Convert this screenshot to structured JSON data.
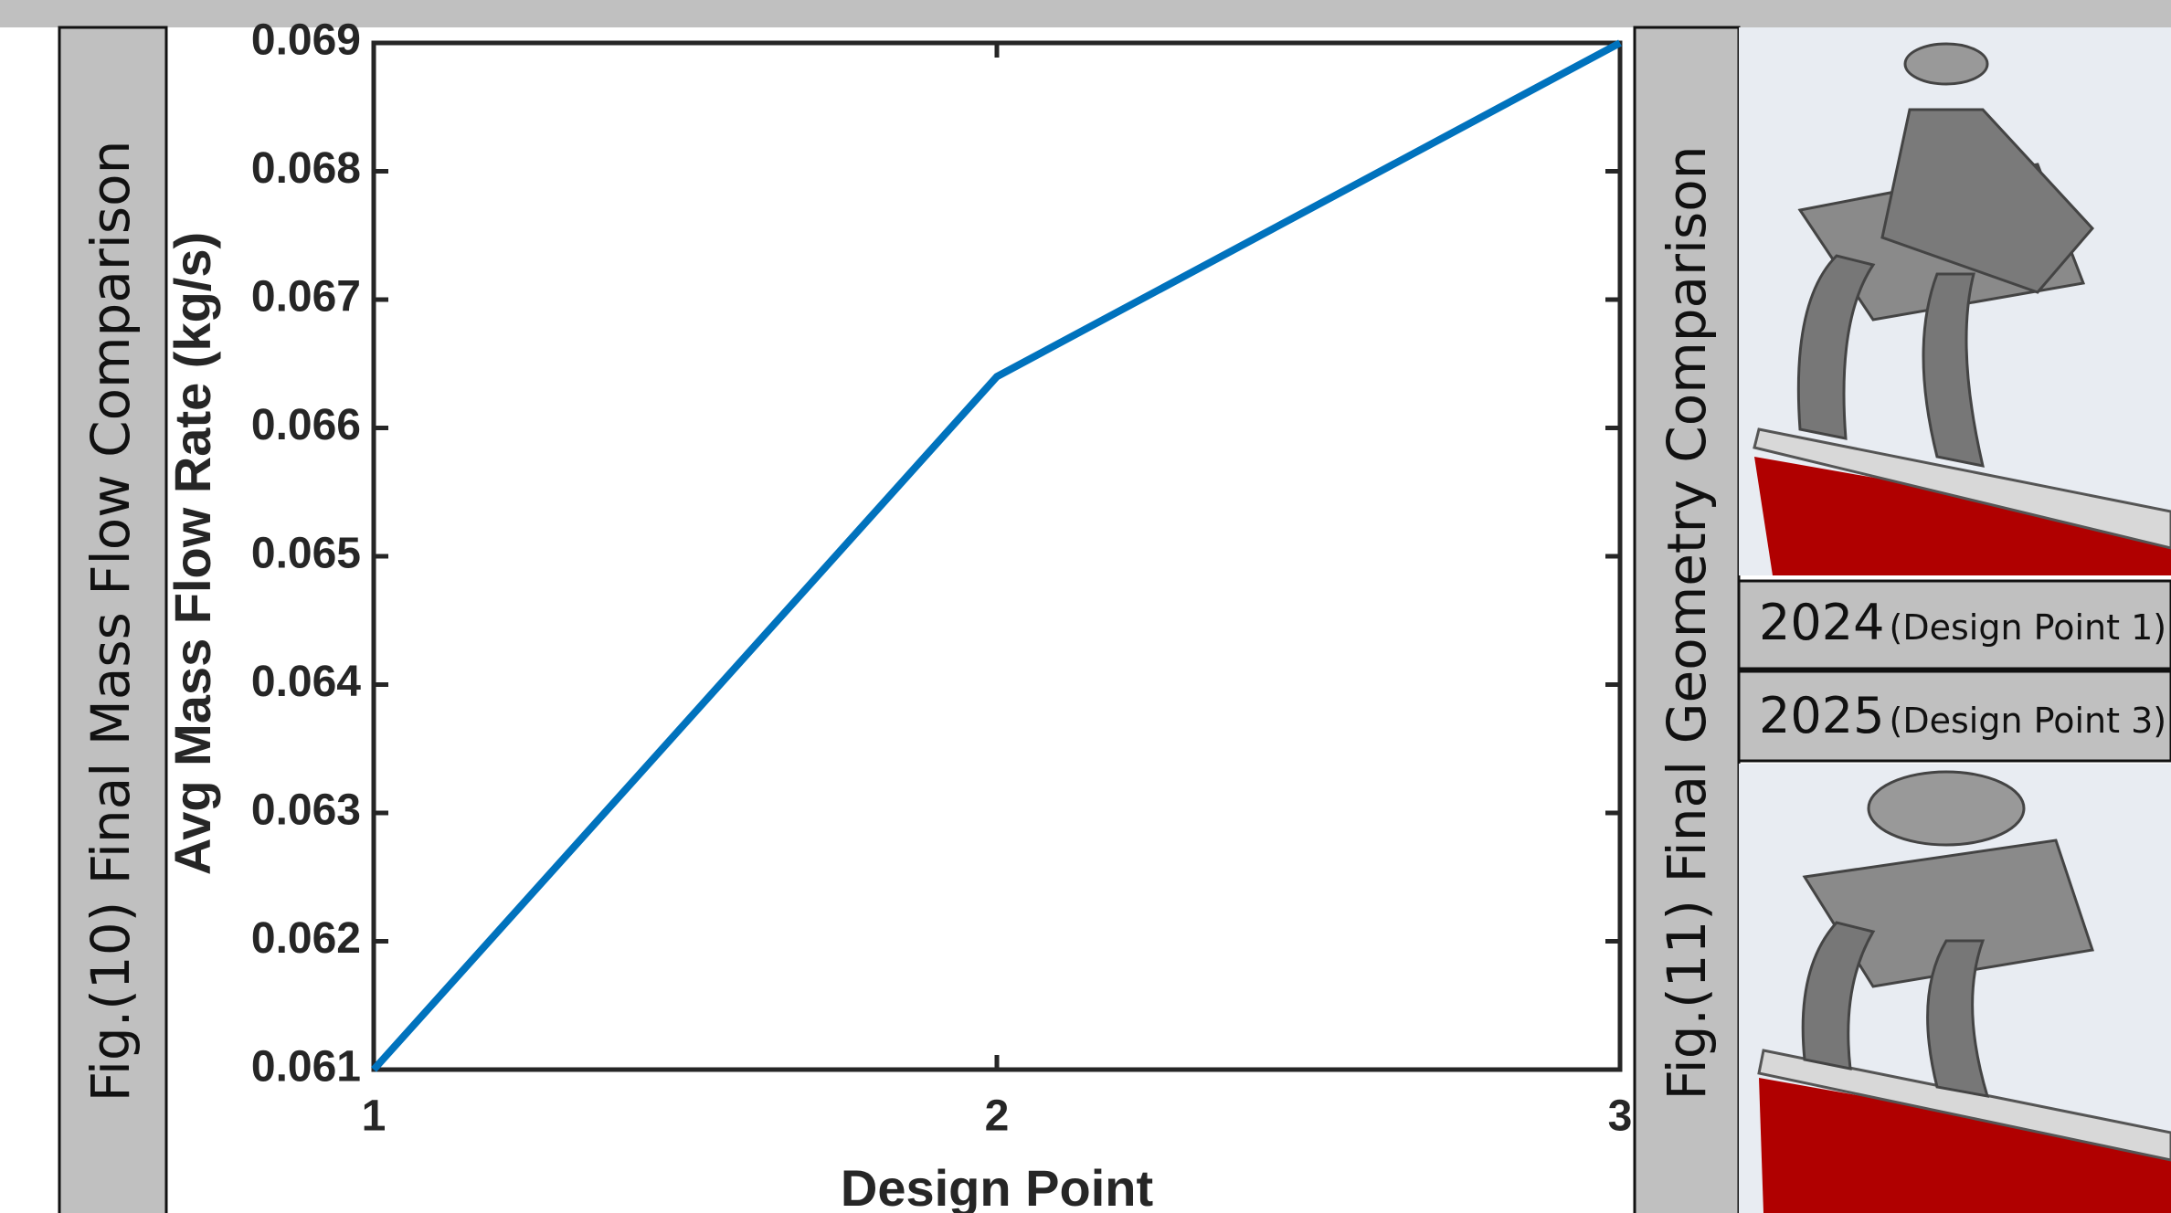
{
  "chart_data": {
    "type": "line",
    "x_label": "Design Point",
    "y_label": "Avg Mass Flow Rate (kg/s)",
    "x": [
      1,
      2,
      3
    ],
    "values": [
      0.061,
      0.0664,
      0.069
    ],
    "color": "#0072bd",
    "xlim": [
      1,
      3
    ],
    "ylim": [
      0.061,
      0.069
    ],
    "xticks": [
      1,
      2,
      3
    ],
    "yticks": [
      0.061,
      0.062,
      0.063,
      0.064,
      0.065,
      0.066,
      0.067,
      0.068,
      0.069
    ]
  },
  "figure_10_caption": "Fig.(10) Final Mass Flow Comparison",
  "figure_11_caption": "Fig.(11) Final Geometry Comparison",
  "geometry_labels": [
    {
      "year": "2024",
      "note": "(Design Point 1)"
    },
    {
      "year": "2025",
      "note": "(Design Point 3)"
    }
  ]
}
